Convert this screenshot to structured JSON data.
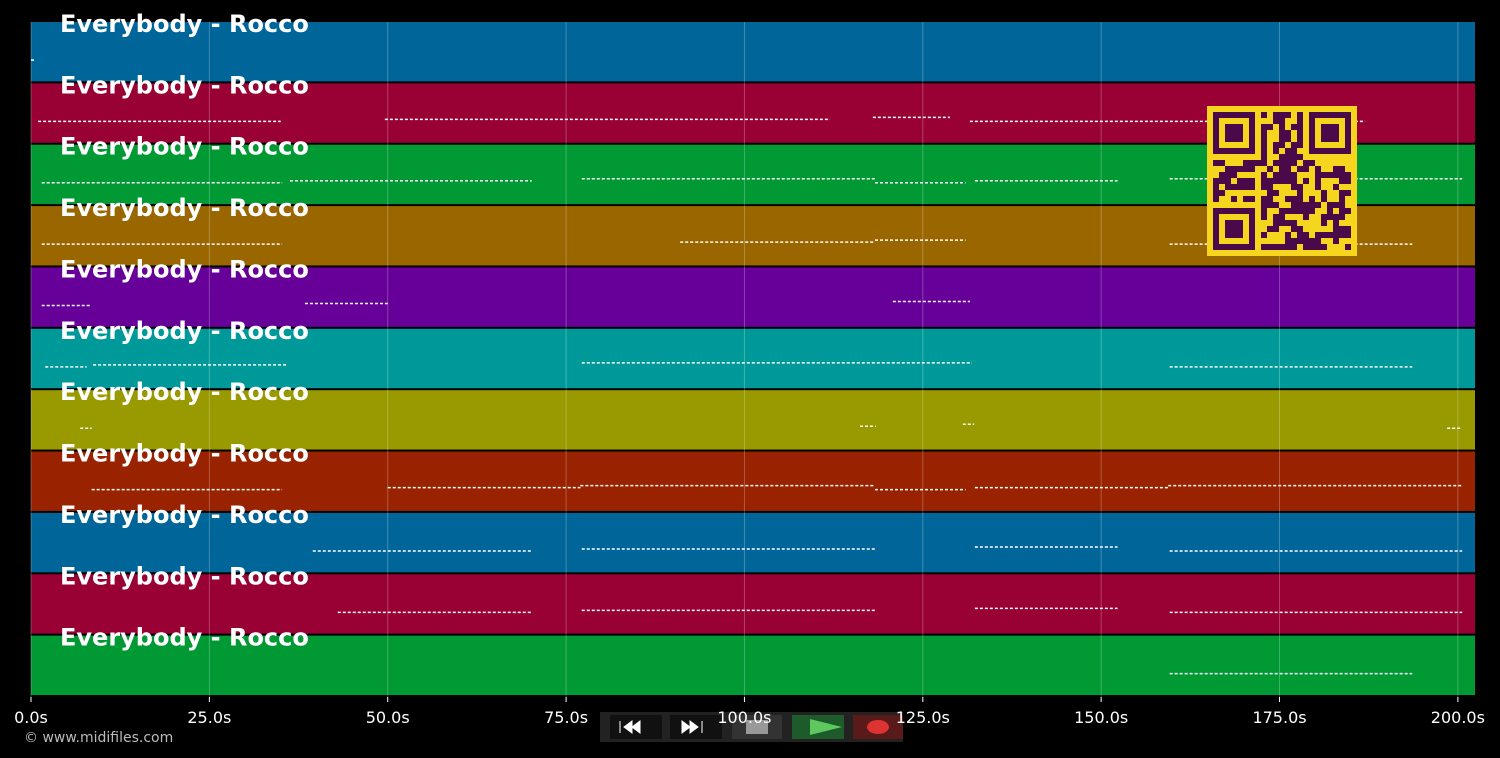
{
  "chart_data": {
    "type": "timeline",
    "xlim": [
      0,
      202.4
    ],
    "xticks": [
      {
        "value": 0,
        "label": "0.0s"
      },
      {
        "value": 25,
        "label": "25.0s"
      },
      {
        "value": 50,
        "label": "50.0s"
      },
      {
        "value": 75,
        "label": "75.0s"
      },
      {
        "value": 100,
        "label": "100.0s"
      },
      {
        "value": 125,
        "label": "125.0s"
      },
      {
        "value": 150,
        "label": "150.0s"
      },
      {
        "value": 175,
        "label": "175.0s"
      },
      {
        "value": 200,
        "label": "200.0s"
      }
    ],
    "grid": true,
    "series": [
      {
        "name": "Everybody - Rocco",
        "color": "#006699",
        "segments": [
          [
            0,
            0.7
          ]
        ]
      },
      {
        "name": "Everybody - Rocco",
        "color": "#990033",
        "segments": [
          [
            1,
            35
          ],
          [
            49.6,
            112
          ],
          [
            118,
            128.8
          ],
          [
            131.6,
            187
          ]
        ]
      },
      {
        "name": "Everybody - Rocco",
        "color": "#009933",
        "segments": [
          [
            1.5,
            35.2
          ],
          [
            36.3,
            70.2
          ],
          [
            77.2,
            118.3
          ],
          [
            118.3,
            131
          ],
          [
            132.3,
            152.3
          ],
          [
            159.6,
            200.6
          ]
        ]
      },
      {
        "name": "Everybody - Rocco",
        "color": "#996600",
        "segments": [
          [
            1.5,
            35.2
          ],
          [
            91,
            118.3
          ],
          [
            118.3,
            131
          ],
          [
            159.6,
            193.6
          ]
        ]
      },
      {
        "name": "Everybody - Rocco",
        "color": "#660099",
        "segments": [
          [
            1.5,
            8.3
          ],
          [
            38.4,
            50
          ],
          [
            120.8,
            131.6
          ]
        ]
      },
      {
        "name": "Everybody - Rocco",
        "color": "#009999",
        "segments": [
          [
            2,
            7.8
          ],
          [
            8.7,
            36
          ],
          [
            77.2,
            131.9
          ],
          [
            159.6,
            193.6
          ]
        ]
      },
      {
        "name": "Everybody - Rocco",
        "color": "#999900",
        "segments": [
          [
            6.9,
            8.5
          ],
          [
            116.2,
            118.4
          ],
          [
            130.6,
            132.2
          ],
          [
            198.5,
            200.6
          ]
        ]
      },
      {
        "name": "Everybody - Rocco",
        "color": "#992200",
        "segments": [
          [
            8.5,
            35.2
          ],
          [
            50,
            77
          ],
          [
            77,
            118.3
          ],
          [
            118.3,
            131
          ],
          [
            132.3,
            159.4
          ],
          [
            159.4,
            200.6
          ]
        ]
      },
      {
        "name": "Everybody - Rocco",
        "color": "#006699",
        "segments": [
          [
            39.5,
            70.2
          ],
          [
            77.2,
            118.3
          ],
          [
            132.3,
            152.3
          ],
          [
            159.6,
            200.6
          ]
        ]
      },
      {
        "name": "Everybody - Rocco",
        "color": "#990033",
        "segments": [
          [
            43,
            70.2
          ],
          [
            77.2,
            118.3
          ],
          [
            132.3,
            152.3
          ],
          [
            159.6,
            200.6
          ]
        ]
      },
      {
        "name": "Everybody - Rocco",
        "color": "#009933",
        "segments": [
          [
            159.6,
            193.6
          ]
        ]
      }
    ]
  },
  "footer": {
    "copyright": "© www.midifiles.com"
  }
}
